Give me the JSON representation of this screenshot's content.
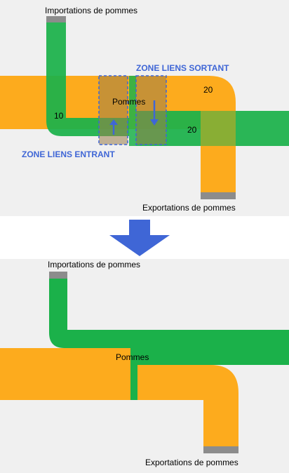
{
  "colors": {
    "panel_background": "#f0f0f0",
    "page_background": "#ffffff",
    "import_flow": "#1bb14a",
    "main_flow": "#fdab1d",
    "node_cap": "#8c8c8c",
    "zone_text": "#3f66d6",
    "arrow": "#3f66d6",
    "zone_border": "#3f66d6"
  },
  "top_panel": {
    "import_label": "Importations de pommes",
    "export_label": "Exportations de pommes",
    "node_label": "Pommes",
    "zone_outgoing_label": "ZONE LIENS SORTANT",
    "zone_incoming_label": "ZONE LIENS ENTRANT",
    "value_import": "10",
    "value_export": "20",
    "value_outgoing": "20"
  },
  "transition_arrow": {
    "icon": "down-arrow-icon"
  },
  "bottom_panel": {
    "import_label": "Importations de pommes",
    "export_label": "Exportations de pommes",
    "node_label": "Pommes"
  }
}
